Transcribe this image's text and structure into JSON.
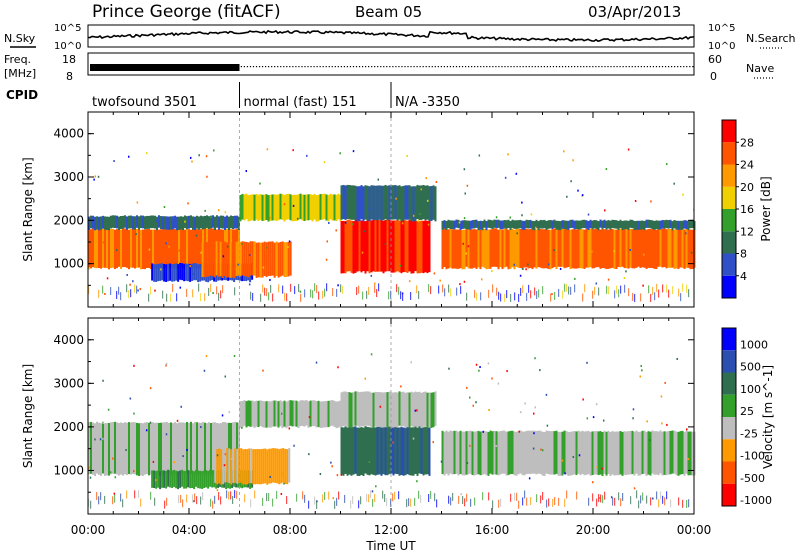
{
  "header": {
    "station": "Prince George (fitACF)",
    "beam": "Beam 05",
    "date": "03/Apr/2013"
  },
  "strip_labels": {
    "nsky": "N.Sky",
    "nsearch": "N.Search",
    "freq_line1": "Freq.",
    "freq_line2": "[MHz]",
    "nave": "Nave",
    "cpid": "CPID",
    "noise_top_left": "10^5",
    "noise_bot_left": "10^0",
    "noise_top_right": "10^5",
    "noise_bot_right": "10^0",
    "freq_top": "18",
    "freq_bot": "8",
    "nave_top": "60",
    "nave_bot": "0"
  },
  "cpid_segments": [
    {
      "label": "twofsound 3501",
      "start_h": 0,
      "end_h": 6
    },
    {
      "label": "normal (fast) 151",
      "start_h": 6,
      "end_h": 12
    },
    {
      "label": "N/A -3350",
      "start_h": 12,
      "end_h": 24
    }
  ],
  "colors": {
    "power_scale": [
      "#0000ff",
      "#3050c8",
      "#2f6f4f",
      "#33a02c",
      "#f0d000",
      "#ff9900",
      "#ff5500",
      "#ff0000"
    ],
    "velocity_scale": [
      "#0000ff",
      "#2a4fb0",
      "#2f6f4f",
      "#33a02c",
      "#bebebe",
      "#ff9900",
      "#ff5500",
      "#ff0000"
    ]
  },
  "chart_data": [
    {
      "type": "heatmap",
      "panel": "power",
      "ylabel": "Slant Range [km]",
      "ylim": [
        0,
        4500
      ],
      "yticks": [
        1000,
        2000,
        3000,
        4000
      ],
      "colorbar_label": "Power [dB]",
      "colorbar_ticks": [
        "4",
        "8",
        "12",
        "16",
        "20",
        "24",
        "28"
      ],
      "xlim_hours": [
        0,
        24
      ],
      "bands": [
        {
          "t0": 0.0,
          "t1": 6.0,
          "r0": 900,
          "r1": 1800,
          "level": 6
        },
        {
          "t0": 0.0,
          "t1": 6.0,
          "r0": 1800,
          "r1": 2100,
          "level": 2
        },
        {
          "t0": 2.5,
          "t1": 6.5,
          "r0": 600,
          "r1": 1000,
          "level": 1
        },
        {
          "t0": 6.0,
          "t1": 10.0,
          "r0": 2000,
          "r1": 2600,
          "level": 4
        },
        {
          "t0": 4.5,
          "t1": 8.0,
          "r0": 700,
          "r1": 1500,
          "level": 6
        },
        {
          "t0": 10.0,
          "t1": 13.5,
          "r0": 800,
          "r1": 2000,
          "level": 7
        },
        {
          "t0": 10.0,
          "t1": 13.8,
          "r0": 2000,
          "r1": 2800,
          "level": 2
        },
        {
          "t0": 14.0,
          "t1": 24.0,
          "r0": 900,
          "r1": 1800,
          "level": 6
        },
        {
          "t0": 14.0,
          "t1": 24.0,
          "r0": 1800,
          "r1": 2000,
          "level": 2
        }
      ]
    },
    {
      "type": "heatmap",
      "panel": "velocity",
      "ylabel": "Slant Range [km]",
      "ylim": [
        0,
        4500
      ],
      "yticks": [
        1000,
        2000,
        3000,
        4000
      ],
      "colorbar_label": "Velocity [m s^-1]",
      "colorbar_ticks": [
        "1000",
        "500",
        "100",
        "25",
        "-25",
        "-100",
        "-500",
        "-1000"
      ],
      "xlim_hours": [
        0,
        24
      ],
      "xticks": [
        "00:00",
        "04:00",
        "08:00",
        "12:00",
        "16:00",
        "20:00",
        "00:00"
      ],
      "xlabel": "Time UT",
      "bands": [
        {
          "t0": 0.0,
          "t1": 6.0,
          "r0": 900,
          "r1": 2100,
          "level": 4
        },
        {
          "t0": 6.0,
          "t1": 10.0,
          "r0": 2000,
          "r1": 2600,
          "level": 4
        },
        {
          "t0": 2.5,
          "t1": 6.5,
          "r0": 600,
          "r1": 1000,
          "level": 3
        },
        {
          "t0": 5.0,
          "t1": 8.0,
          "r0": 700,
          "r1": 1500,
          "level": 5
        },
        {
          "t0": 10.0,
          "t1": 13.5,
          "r0": 900,
          "r1": 2000,
          "level": 2
        },
        {
          "t0": 10.0,
          "t1": 13.8,
          "r0": 2000,
          "r1": 2800,
          "level": 4
        },
        {
          "t0": 14.0,
          "t1": 24.0,
          "r0": 900,
          "r1": 1900,
          "level": 4
        }
      ]
    }
  ]
}
